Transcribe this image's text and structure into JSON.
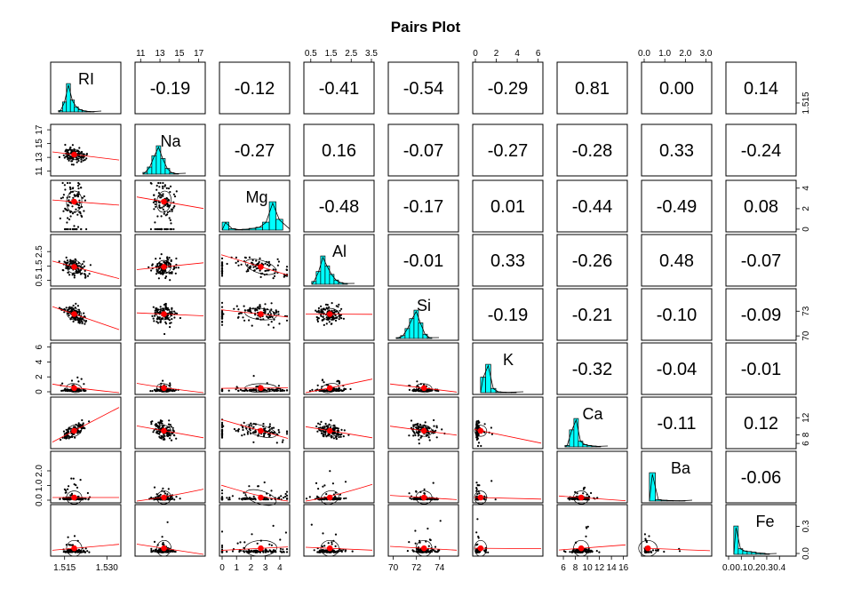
{
  "chart_data": {
    "type": "pairs",
    "title": "Pairs Plot",
    "variables": [
      "RI",
      "Na",
      "Mg",
      "Al",
      "Si",
      "K",
      "Ca",
      "Ba",
      "Fe"
    ],
    "diag_labels": [
      "RI",
      "Na",
      "Mg",
      "Al",
      "Si",
      "K",
      "Ca",
      "Ba",
      "Fe"
    ],
    "correlations": [
      [
        null,
        -0.19,
        -0.12,
        -0.41,
        -0.54,
        -0.29,
        0.81,
        0.0,
        0.14
      ],
      [
        null,
        null,
        -0.27,
        0.16,
        -0.07,
        -0.27,
        -0.28,
        0.33,
        -0.24
      ],
      [
        null,
        null,
        null,
        -0.48,
        -0.17,
        0.01,
        -0.44,
        -0.49,
        0.08
      ],
      [
        null,
        null,
        null,
        null,
        -0.01,
        0.33,
        -0.26,
        0.48,
        -0.07
      ],
      [
        null,
        null,
        null,
        null,
        null,
        -0.19,
        -0.21,
        -0.1,
        -0.09
      ],
      [
        null,
        null,
        null,
        null,
        null,
        null,
        -0.32,
        -0.04,
        -0.01
      ],
      [
        null,
        null,
        null,
        null,
        null,
        null,
        null,
        -0.11,
        0.12
      ],
      [
        null,
        null,
        null,
        null,
        null,
        null,
        null,
        null,
        -0.06
      ]
    ],
    "correlation_labels": [
      [
        "-0.19",
        "-0.12",
        "-0.41",
        "-0.54",
        "-0.29",
        "0.81",
        "0.00",
        "0.14"
      ],
      [
        "-0.27",
        "0.16",
        "-0.07",
        "-0.27",
        "-0.28",
        "0.33",
        "-0.24"
      ],
      [
        "-0.48",
        "-0.17",
        "0.01",
        "-0.44",
        "-0.49",
        "0.08"
      ],
      [
        "-0.01",
        "0.33",
        "-0.26",
        "0.48",
        "-0.07"
      ],
      [
        "-0.19",
        "-0.21",
        "-0.10",
        "-0.09"
      ],
      [
        "-0.32",
        "-0.04",
        "-0.01"
      ],
      [
        "-0.11",
        "0.12"
      ],
      [
        "-0.06"
      ]
    ],
    "ranges": {
      "RI": [
        1.511,
        1.534
      ],
      "Na": [
        10.7,
        17.4
      ],
      "Mg": [
        0,
        4.5
      ],
      "Al": [
        0.29,
        3.5
      ],
      "Si": [
        69.8,
        75.4
      ],
      "K": [
        0,
        6.2
      ],
      "Ca": [
        5.4,
        16.2
      ],
      "Ba": [
        0,
        3.15
      ],
      "Fe": [
        0,
        0.51
      ]
    },
    "means": {
      "RI": 1.5184,
      "Na": 13.41,
      "Mg": 2.68,
      "Al": 1.44,
      "Si": 72.65,
      "K": 0.5,
      "Ca": 8.96,
      "Ba": 0.18,
      "Fe": 0.057
    },
    "sds": {
      "RI": 0.003,
      "Na": 0.82,
      "Mg": 1.44,
      "Al": 0.5,
      "Si": 0.77,
      "K": 0.65,
      "Ca": 1.42,
      "Ba": 0.5,
      "Fe": 0.097
    },
    "axis_ticks": {
      "top": [
        {
          "var": "Na",
          "labels": [
            "11",
            "13",
            "15",
            "17"
          ],
          "values": [
            11,
            13,
            15,
            17
          ]
        },
        {
          "var": "Al",
          "labels": [
            "0.5",
            "1.5",
            "2.5",
            "3.5"
          ],
          "values": [
            0.5,
            1.5,
            2.5,
            3.5
          ]
        },
        {
          "var": "K",
          "labels": [
            "0",
            "2",
            "4",
            "6"
          ],
          "values": [
            0,
            2,
            4,
            6
          ]
        },
        {
          "var": "Ba",
          "labels": [
            "0.0",
            "1.0",
            "2.0",
            "3.0"
          ],
          "values": [
            0.0,
            1.0,
            2.0,
            3.0
          ]
        }
      ],
      "bottom": [
        {
          "var": "RI",
          "labels": [
            "1.515",
            "1.530"
          ],
          "values": [
            1.515,
            1.53
          ]
        },
        {
          "var": "Mg",
          "labels": [
            "0",
            "1",
            "2",
            "3",
            "4"
          ],
          "values": [
            0,
            1,
            2,
            3,
            4
          ]
        },
        {
          "var": "Si",
          "labels": [
            "70",
            "72",
            "74"
          ],
          "values": [
            70,
            72,
            74
          ]
        },
        {
          "var": "Ca",
          "labels": [
            "6",
            "8",
            "10",
            "12",
            "14",
            "16"
          ],
          "values": [
            6,
            8,
            10,
            12,
            14,
            16
          ]
        },
        {
          "var": "Fe",
          "labels": [
            "0.0",
            "0.1",
            "0.2",
            "0.3",
            "0.4"
          ],
          "values": [
            0.0,
            0.1,
            0.2,
            0.3,
            0.4
          ]
        }
      ],
      "left": [
        {
          "var": "Na",
          "labels": [
            "11",
            "13",
            "15",
            "17"
          ],
          "values": [
            11,
            13,
            15,
            17
          ]
        },
        {
          "var": "Al",
          "labels": [
            "0.5",
            "1.5",
            "2.5"
          ],
          "values": [
            0.5,
            1.5,
            2.5
          ]
        },
        {
          "var": "K",
          "labels": [
            "0",
            "2",
            "4",
            "6"
          ],
          "values": [
            0,
            2,
            4,
            6
          ]
        },
        {
          "var": "Ba",
          "labels": [
            "0.0",
            "1.0",
            "2.0"
          ],
          "values": [
            0.0,
            1.0,
            2.0
          ]
        }
      ],
      "right": [
        {
          "var": "RI",
          "labels": [
            "1.515"
          ],
          "values": [
            1.515
          ]
        },
        {
          "var": "Mg",
          "labels": [
            "0",
            "2",
            "4"
          ],
          "values": [
            0,
            2,
            4
          ]
        },
        {
          "var": "Si",
          "labels": [
            "70",
            "73"
          ],
          "values": [
            70,
            73
          ]
        },
        {
          "var": "Ca",
          "labels": [
            "6",
            "8",
            "12"
          ],
          "values": [
            6,
            8,
            12
          ]
        },
        {
          "var": "Fe",
          "labels": [
            "0.0",
            "0.3"
          ],
          "values": [
            0.0,
            0.3
          ]
        }
      ]
    },
    "histograms": {
      "RI": [
        0.05,
        0.35,
        1.0,
        0.42,
        0.18,
        0.08,
        0.04,
        0.02,
        0.01
      ],
      "Na": [
        0.06,
        0.25,
        0.65,
        1.0,
        0.55,
        0.2,
        0.05,
        0.02
      ],
      "Mg": [
        0.28,
        0.05,
        0.02,
        0.03,
        0.06,
        0.1,
        0.28,
        1.0,
        0.38
      ],
      "Al": [
        0.1,
        0.45,
        1.0,
        0.65,
        0.35,
        0.15,
        0.06,
        0.03
      ],
      "Si": [
        0.03,
        0.1,
        0.35,
        0.7,
        1.0,
        0.55,
        0.15,
        0.03
      ],
      "K": [
        0.55,
        1.0,
        0.15,
        0.03,
        0.02,
        0.01,
        0.02
      ],
      "Ca": [
        0.05,
        0.6,
        1.0,
        0.2,
        0.08,
        0.05,
        0.03,
        0.02
      ],
      "Ba": [
        1.0,
        0.05,
        0.03,
        0.02,
        0.01,
        0.01
      ],
      "Fe": [
        1.0,
        0.2,
        0.12,
        0.1,
        0.08,
        0.05,
        0.04,
        0.02
      ]
    },
    "colors": {
      "histogram": "#00FFFF",
      "points": "#000000",
      "means": "#FF0000",
      "smooth": "#FF0000",
      "ellipse": "#000000"
    }
  }
}
